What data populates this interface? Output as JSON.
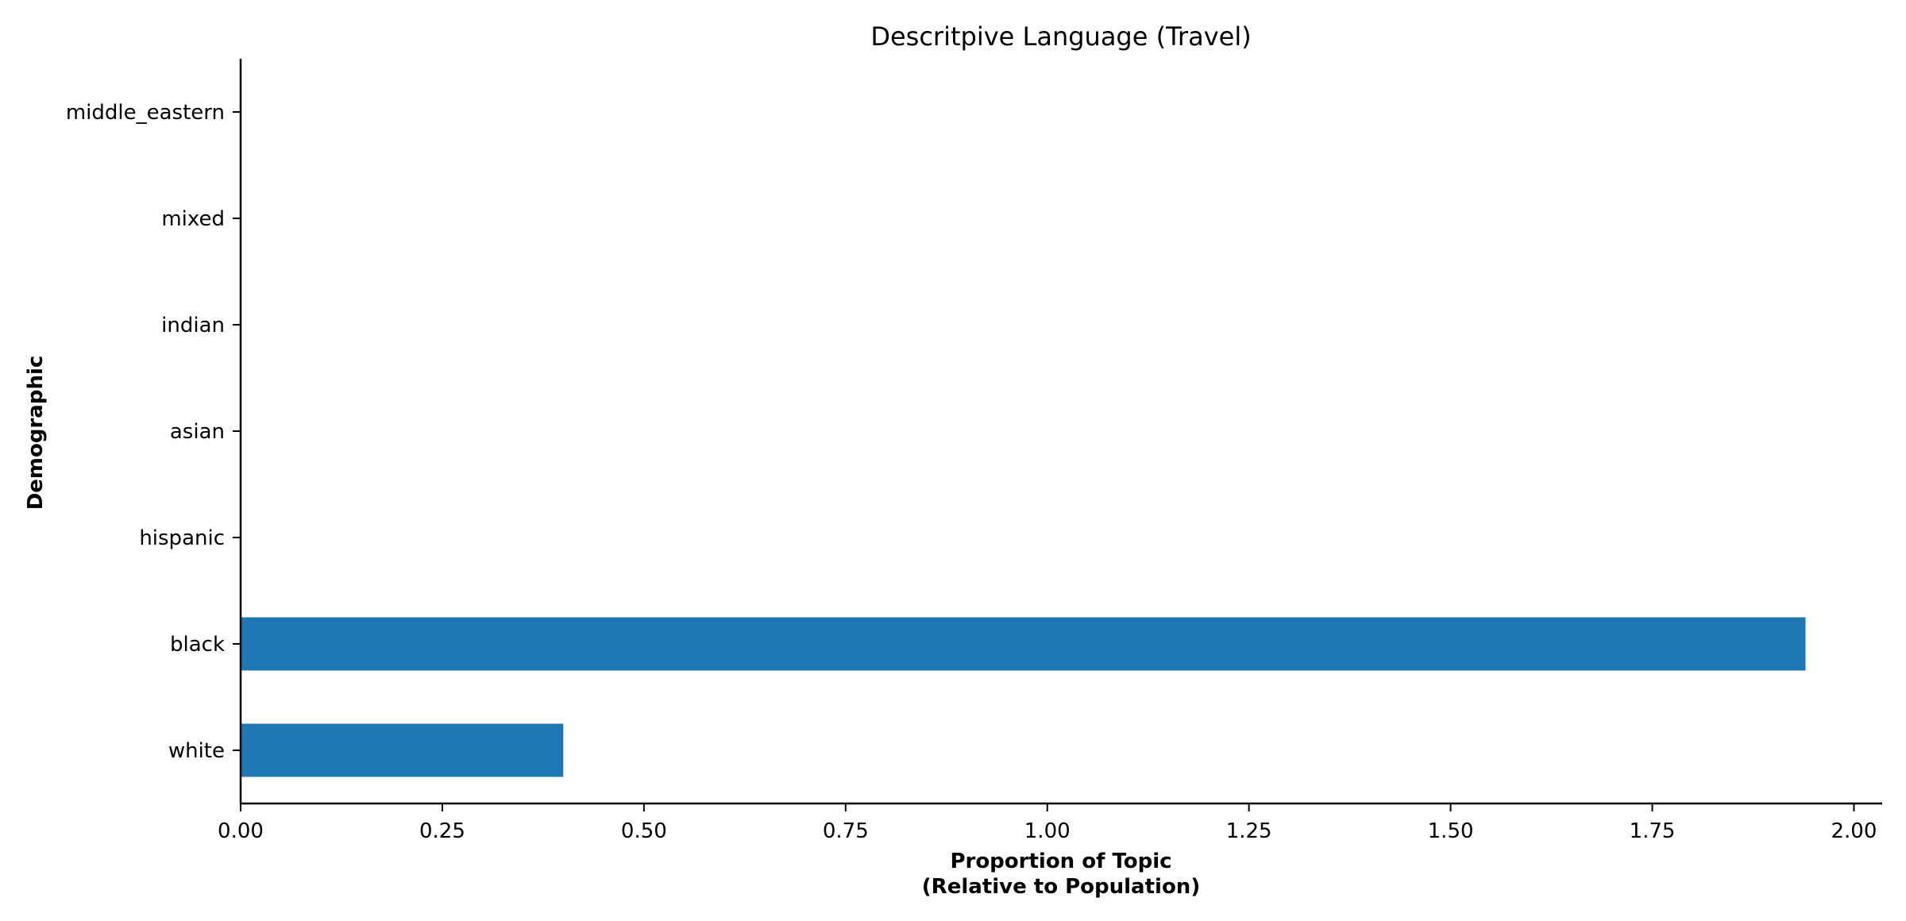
{
  "chart_data": {
    "type": "bar",
    "orientation": "horizontal",
    "title": "Descritpive Language (Travel)",
    "xlabel_lines": [
      "Proportion of Topic",
      "(Relative to Population)"
    ],
    "ylabel": "Demographic",
    "categories": [
      "white",
      "black",
      "hispanic",
      "asian",
      "indian",
      "mixed",
      "middle_eastern"
    ],
    "values": [
      0.4,
      1.94,
      0,
      0,
      0,
      0,
      0
    ],
    "xlim": [
      0,
      2.035
    ],
    "xticks": [
      "0.00",
      "0.25",
      "0.50",
      "0.75",
      "1.00",
      "1.25",
      "1.50",
      "1.75",
      "2.00"
    ],
    "bar_color": "#1f77b4",
    "grid": false,
    "legend": "none"
  }
}
